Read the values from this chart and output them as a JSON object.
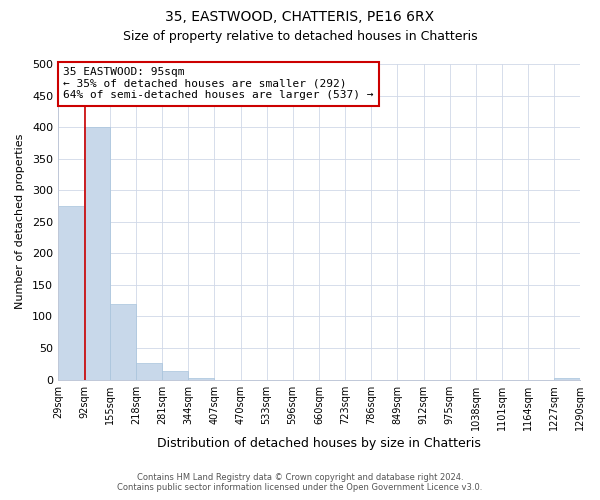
{
  "title": "35, EASTWOOD, CHATTERIS, PE16 6RX",
  "subtitle": "Size of property relative to detached houses in Chatteris",
  "xlabel": "Distribution of detached houses by size in Chatteris",
  "ylabel": "Number of detached properties",
  "bin_edges": [
    29,
    92,
    155,
    218,
    281,
    344,
    407,
    470,
    533,
    596,
    660,
    723,
    786,
    849,
    912,
    975,
    1038,
    1101,
    1164,
    1227,
    1290
  ],
  "bin_labels": [
    "29sqm",
    "92sqm",
    "155sqm",
    "218sqm",
    "281sqm",
    "344sqm",
    "407sqm",
    "470sqm",
    "533sqm",
    "596sqm",
    "660sqm",
    "723sqm",
    "786sqm",
    "849sqm",
    "912sqm",
    "975sqm",
    "1038sqm",
    "1101sqm",
    "1164sqm",
    "1227sqm",
    "1290sqm"
  ],
  "bar_heights": [
    275,
    400,
    120,
    27,
    13,
    3,
    0,
    0,
    0,
    0,
    0,
    0,
    0,
    0,
    0,
    0,
    0,
    0,
    0,
    3
  ],
  "bar_color": "#c8d8ea",
  "bar_edgecolor": "#a8c4dc",
  "property_line_x": 95,
  "property_line_color": "#cc0000",
  "ylim": [
    0,
    500
  ],
  "yticks": [
    0,
    50,
    100,
    150,
    200,
    250,
    300,
    350,
    400,
    450,
    500
  ],
  "annotation_line1": "35 EASTWOOD: 95sqm",
  "annotation_line2": "← 35% of detached houses are smaller (292)",
  "annotation_line3": "64% of semi-detached houses are larger (537) →",
  "footer_line1": "Contains HM Land Registry data © Crown copyright and database right 2024.",
  "footer_line2": "Contains public sector information licensed under the Open Government Licence v3.0.",
  "background_color": "#ffffff",
  "grid_color": "#d0d8e8",
  "title_fontsize": 10,
  "subtitle_fontsize": 9
}
